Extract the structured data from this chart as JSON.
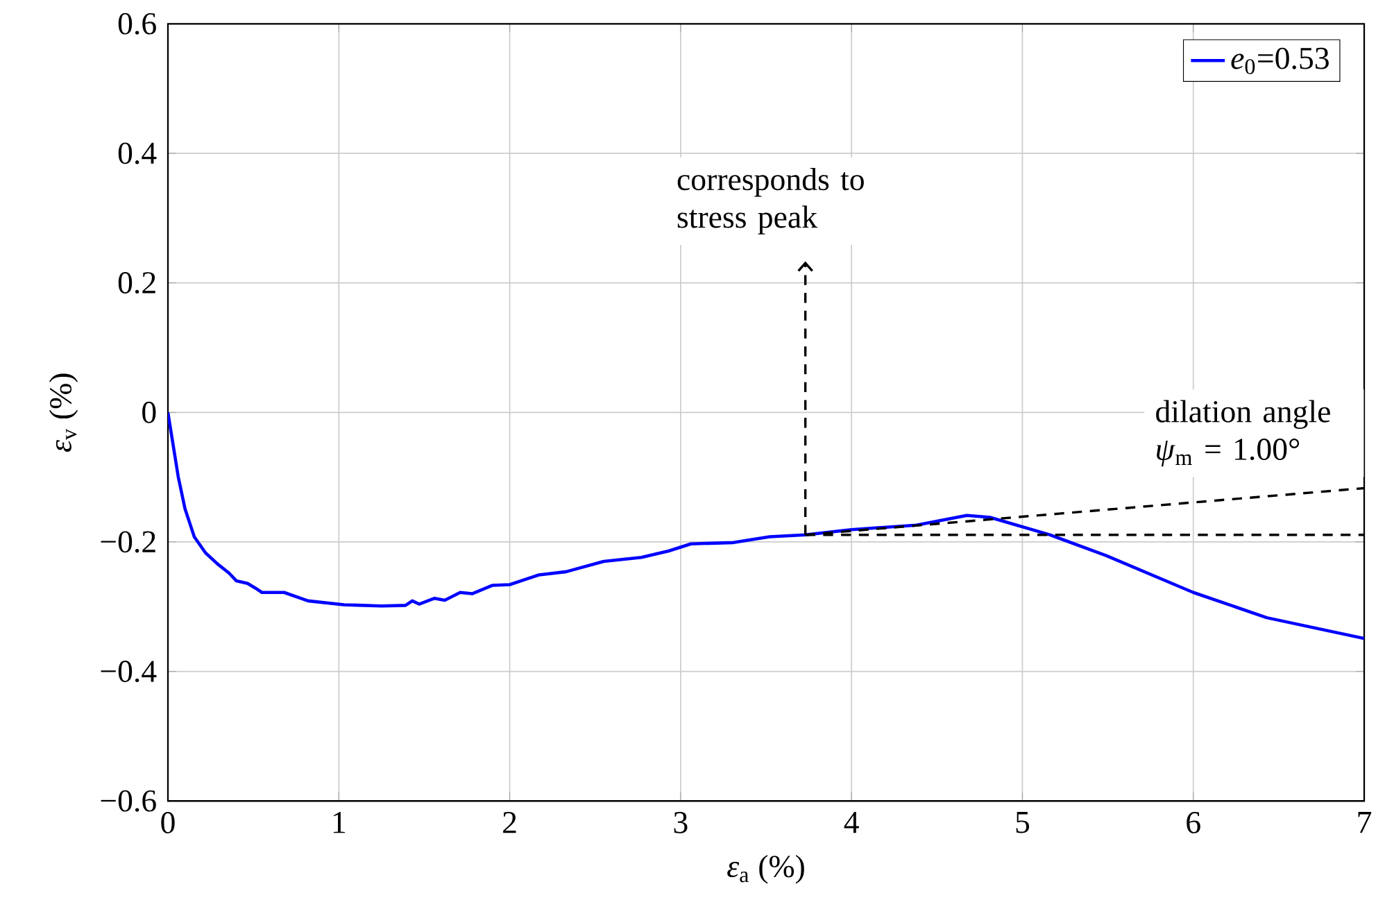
{
  "chart_data": {
    "type": "line",
    "xlabel": "*ε*$_{a}$ (%)",
    "ylabel": "*ε*$_{v}$ (%)",
    "xlim": [
      0,
      7
    ],
    "ylim": [
      -0.6,
      0.6
    ],
    "xticks": [
      0,
      1,
      2,
      3,
      4,
      5,
      6,
      7
    ],
    "yticks": [
      {
        "value": -0.6,
        "label": "−0.6"
      },
      {
        "value": -0.4,
        "label": "−0.4"
      },
      {
        "value": -0.2,
        "label": "−0.2"
      },
      0,
      0.2,
      0.4,
      0.6
    ],
    "grid": true,
    "legend": "top right",
    "marker": "none",
    "series": [
      {
        "name": "*e*$_{0}$=0.53",
        "color": "#0000ff",
        "line_style": "solid",
        "x": [
          0,
          0.06,
          0.1,
          0.154,
          0.22,
          0.29,
          0.357,
          0.4,
          0.466,
          0.51,
          0.55,
          0.68,
          0.82,
          1.03,
          1.25,
          1.39,
          1.43,
          1.47,
          1.56,
          1.62,
          1.71,
          1.78,
          1.9,
          2.0,
          2.17,
          2.33,
          2.55,
          2.77,
          2.93,
          3.06,
          3.31,
          3.52,
          3.73,
          4.0,
          4.38,
          4.675,
          4.81,
          5.16,
          5.49,
          6.0,
          6.43,
          7.0
        ],
        "values": [
          0,
          -0.099,
          -0.149,
          -0.192,
          -0.217,
          -0.234,
          -0.248,
          -0.26,
          -0.264,
          -0.271,
          -0.278,
          -0.278,
          -0.291,
          -0.297,
          -0.299,
          -0.298,
          -0.291,
          -0.296,
          -0.287,
          -0.29,
          -0.278,
          -0.28,
          -0.267,
          -0.266,
          -0.251,
          -0.246,
          -0.23,
          -0.224,
          -0.214,
          -0.203,
          -0.201,
          -0.192,
          -0.189,
          -0.181,
          -0.174,
          -0.159,
          -0.162,
          -0.189,
          -0.221,
          -0.278,
          -0.317,
          -0.349
        ]
      },
      {
        "color": "#000000",
        "line_style": "dashed",
        "x": [
          3.73,
          7
        ],
        "values": [
          -0.189,
          -0.189
        ]
      },
      {
        "color": "#000000",
        "line_style": "dashed",
        "x": [
          3.73,
          7
        ],
        "values": [
          -0.189,
          -0.117
        ]
      }
    ],
    "annotations": [
      {
        "text": "corresponds to stress peak",
        "x": 3.73,
        "y": -0.189
      },
      "dilation angle *ψ*$_{m}$ = 1.00°"
    ]
  }
}
